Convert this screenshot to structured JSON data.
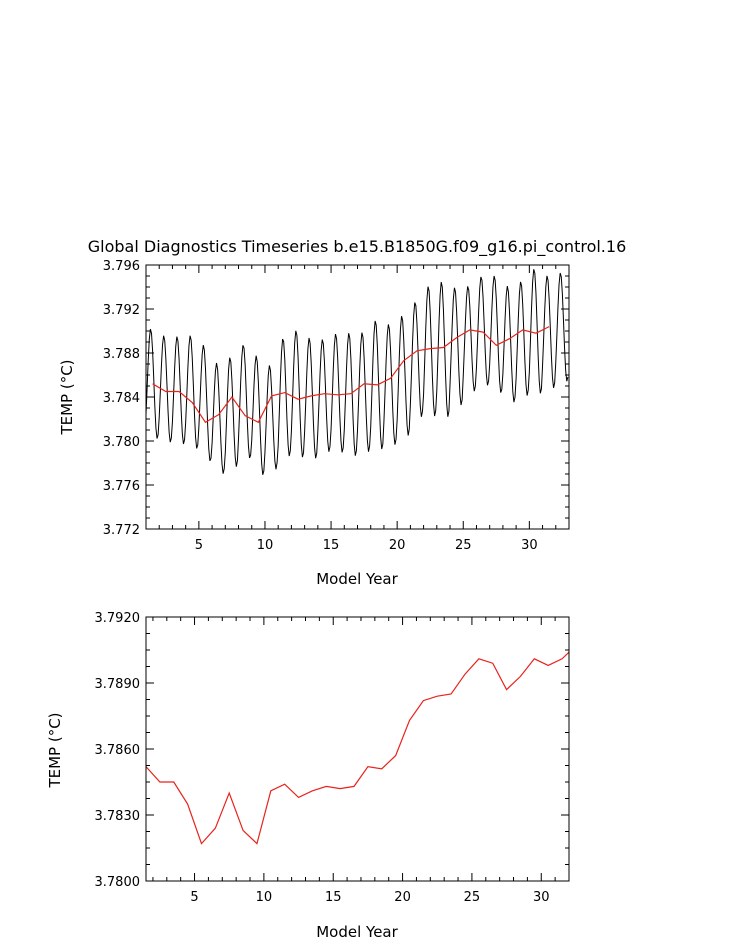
{
  "colors": {
    "monthly": "#000000",
    "annual": "#e8231c",
    "axis": "#000000",
    "background": "#ffffff"
  },
  "chart_data": [
    {
      "type": "line",
      "title": "Global Diagnostics Timeseries b.e15.B1850G.f09_g16.pi_control.16",
      "xlabel": "Model Year",
      "ylabel": "TEMP (°C)",
      "xlim": [
        1,
        33
      ],
      "ylim": [
        3.772,
        3.796
      ],
      "xticks": [
        5,
        10,
        15,
        20,
        25,
        30
      ],
      "xtick_labels": [
        "5",
        "10",
        "15",
        "20",
        "25",
        "30"
      ],
      "yticks": [
        3.772,
        3.776,
        3.78,
        3.784,
        3.788,
        3.792,
        3.796
      ],
      "ytick_labels": [
        "3.772",
        "3.776",
        "3.780",
        "3.784",
        "3.788",
        "3.792",
        "3.796"
      ],
      "series": [
        {
          "kind": "monthly",
          "x_start": 1.0,
          "step": 0.08333,
          "amplitude": [
            4.9,
            4.8,
            4.9,
            5.0,
            4.9,
            5.0,
            5.3,
            5.0,
            5.2,
            5.1,
            5.6,
            5.7,
            5.5,
            5.2,
            5.4,
            5.6,
            5.6,
            5.9,
            5.6,
            5.8,
            5.5,
            6.0,
            6.2,
            5.5,
            5.0,
            5.0,
            5.1,
            5.3,
            5.4,
            5.7,
            5.2,
            5.0
          ],
          "values": [
            3.7853,
            3.7847,
            3.7846,
            3.7846,
            3.7837,
            3.7818,
            3.7824,
            3.784,
            3.7823,
            3.7817,
            3.7841,
            3.7844,
            3.7838,
            3.7841,
            3.7844,
            3.7842,
            3.7843,
            3.7852,
            3.785,
            3.7857,
            3.7874,
            3.7882,
            3.7883,
            3.7885,
            3.7892,
            3.7901,
            3.7899,
            3.7886,
            3.7892,
            3.7901,
            3.7898,
            3.7904
          ]
        },
        {
          "kind": "annual",
          "x": [
            1.5,
            2.5,
            3.5,
            4.5,
            5.5,
            6.5,
            7.5,
            8.5,
            9.5,
            10.5,
            11.5,
            12.5,
            13.5,
            14.5,
            15.5,
            16.5,
            17.5,
            18.5,
            19.5,
            20.5,
            21.5,
            22.5,
            23.5,
            24.5,
            25.5,
            26.5,
            27.5,
            28.5,
            29.5,
            30.5,
            31.5
          ],
          "values": [
            3.7852,
            3.7845,
            3.7845,
            3.7835,
            3.7817,
            3.7824,
            3.784,
            3.7823,
            3.7817,
            3.7841,
            3.7844,
            3.7838,
            3.7841,
            3.7843,
            3.7842,
            3.7843,
            3.7852,
            3.7851,
            3.7857,
            3.7873,
            3.7882,
            3.7884,
            3.7885,
            3.7894,
            3.7901,
            3.7899,
            3.7887,
            3.7893,
            3.7901,
            3.7898,
            3.7904
          ]
        }
      ]
    },
    {
      "type": "line",
      "title": "",
      "xlabel": "Model Year",
      "ylabel": "TEMP (°C)",
      "xlim": [
        1.5,
        32
      ],
      "ylim": [
        3.78,
        3.792
      ],
      "xticks": [
        5,
        10,
        15,
        20,
        25,
        30
      ],
      "xtick_labels": [
        "5",
        "10",
        "15",
        "20",
        "25",
        "30"
      ],
      "yticks": [
        3.78,
        3.783,
        3.786,
        3.789,
        3.792
      ],
      "ytick_labels": [
        "3.7800",
        "3.7830",
        "3.7860",
        "3.7890",
        "3.7920"
      ],
      "series": [
        {
          "kind": "annual",
          "x": [
            1.5,
            2.5,
            3.5,
            4.5,
            5.5,
            6.5,
            7.5,
            8.5,
            9.5,
            10.5,
            11.5,
            12.5,
            13.5,
            14.5,
            15.5,
            16.5,
            17.5,
            18.5,
            19.5,
            20.5,
            21.5,
            22.5,
            23.5,
            24.5,
            25.5,
            26.5,
            27.5,
            28.5,
            29.5,
            30.5,
            31.5,
            32
          ],
          "values": [
            3.7852,
            3.7845,
            3.7845,
            3.7835,
            3.7817,
            3.7824,
            3.784,
            3.7823,
            3.7817,
            3.7841,
            3.7844,
            3.7838,
            3.7841,
            3.7843,
            3.7842,
            3.7843,
            3.7852,
            3.7851,
            3.7857,
            3.7873,
            3.7882,
            3.7884,
            3.7885,
            3.7894,
            3.7901,
            3.7899,
            3.7887,
            3.7893,
            3.7901,
            3.7898,
            3.7901,
            3.7904
          ]
        }
      ]
    }
  ]
}
